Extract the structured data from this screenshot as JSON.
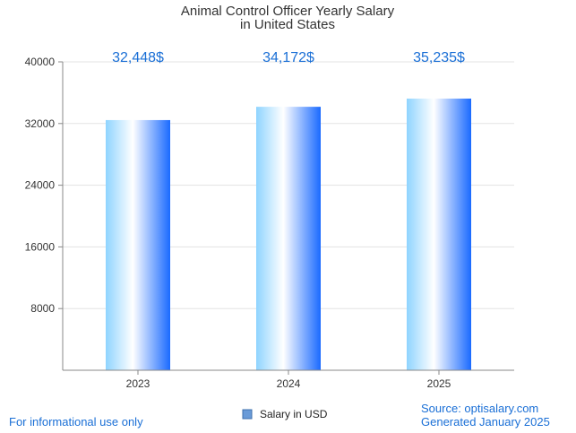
{
  "chart_data": {
    "type": "bar",
    "title_lines": [
      "Animal Control Officer Yearly Salary",
      "in United States"
    ],
    "categories": [
      "2023",
      "2024",
      "2025"
    ],
    "series": [
      {
        "name": "Salary in USD",
        "values": [
          32448,
          34172,
          35235
        ]
      }
    ],
    "data_labels": [
      "32,448$",
      "34,172$",
      "35,235$"
    ],
    "ylim": [
      0,
      40000
    ],
    "yticks": [
      8000,
      16000,
      24000,
      32000,
      40000
    ],
    "grid": true,
    "legend_position": "bottom-center"
  },
  "footer": {
    "disclaimer": "For informational use only",
    "source": "Source: optisalary.com",
    "generated": "Generated January 2025"
  },
  "colors": {
    "accent": "#1a6fd6",
    "bar_light": "#8fd4ff",
    "bar_dark": "#1a6aff",
    "grid": "#e3e3e3",
    "axis": "#888888",
    "legend_swatch": "#6a9bd8"
  }
}
